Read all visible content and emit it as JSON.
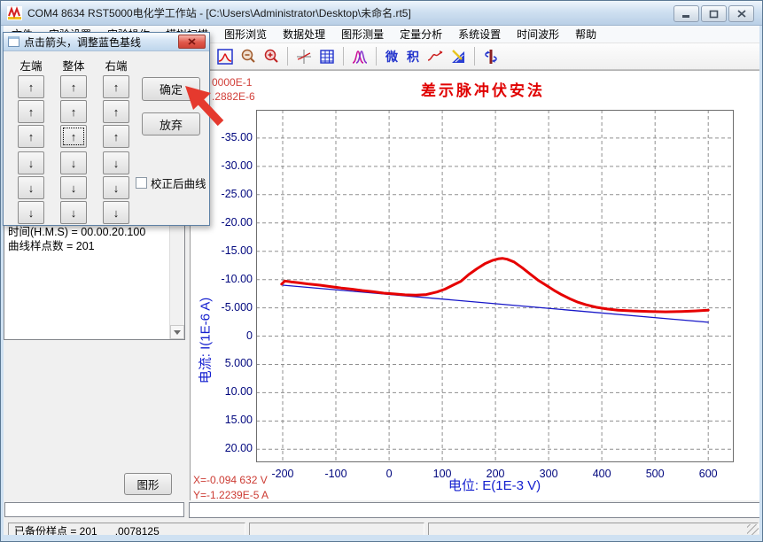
{
  "window": {
    "title": "COM4 8634 RST5000电化学工作站 - [C:\\Users\\Administrator\\Desktop\\未命名.rt5]"
  },
  "menu": {
    "items": [
      "文件",
      "实验设置",
      "实验操作",
      "模拟扫描",
      "图形浏览",
      "数据处理",
      "图形测量",
      "定量分析",
      "系统设置",
      "时间波形",
      "帮助"
    ]
  },
  "toolbar": {
    "derivative_label": "微",
    "integral_label": "积",
    "icon_names": [
      "stop",
      "axis-plus-minus",
      "axis-minus-minus",
      "axis-minus-plus",
      "axis-plus-plus",
      "peak-expand-y",
      "peak-compress-y",
      "peak-window-large",
      "peak-window-small",
      "zoom-out",
      "zoom-in",
      "baseline-cross",
      "data-table",
      "overlay-peaks",
      "derivative",
      "integral",
      "smooth-curve",
      "measure-tool",
      "flip-axis"
    ],
    "pressed_icon": "axis-minus-plus"
  },
  "dialog": {
    "title": "点击箭头，调整蓝色基线",
    "column_headers": [
      "左端",
      "整体",
      "右端"
    ],
    "up_arrow": "↑",
    "down_arrow": "↓",
    "confirm_label": "确定",
    "discard_label": "放弃",
    "checkbox_label": "校正后曲线",
    "checkbox_checked": false,
    "focused_button": {
      "grid": "up",
      "row": 2,
      "col": 1
    }
  },
  "left_panel": {
    "lines": [
      "时间(H.M.S) = 00.00.20.100",
      "曲线样点数 = 201"
    ],
    "graph_button_label": "图形",
    "input_value": ""
  },
  "chart": {
    "title": "差示脉冲伏安法",
    "partial_readout_line1": "0000E-1",
    "partial_readout_line2": ".2882E-6",
    "y_axis_label": "电流: I(1E-6 A)",
    "x_axis_label": "电位:  E(1E-3 V)",
    "cursor_x": "X=-0.094 632 V",
    "cursor_y": "Y=-1.2239E-5 A"
  },
  "chart_data": {
    "type": "line",
    "xlim": [
      -250,
      648
    ],
    "ylim": [
      -40,
      22.3
    ],
    "y_inverted_axis": true,
    "x_ticks": [
      -200,
      -100,
      0,
      100,
      200,
      300,
      400,
      500,
      600
    ],
    "y_ticks": [
      {
        "v": -35,
        "label": "-35.00"
      },
      {
        "v": -30,
        "label": "-30.00"
      },
      {
        "v": -25,
        "label": "-25.00"
      },
      {
        "v": -20,
        "label": "-20.00"
      },
      {
        "v": -15,
        "label": "-15.00"
      },
      {
        "v": -10,
        "label": "-10.00"
      },
      {
        "v": -5,
        "label": "-5.000"
      },
      {
        "v": 0,
        "label": "0"
      },
      {
        "v": 5,
        "label": "5.000"
      },
      {
        "v": 10,
        "label": "10.00"
      },
      {
        "v": 15,
        "label": "15.00"
      },
      {
        "v": 20,
        "label": "20.00"
      }
    ],
    "grid_dashed": true,
    "series": [
      {
        "name": "baseline",
        "color": "#1616c8",
        "width": 1.3,
        "points": [
          [
            -200,
            -9.0
          ],
          [
            600,
            -2.45
          ]
        ]
      },
      {
        "name": "dpv-curve",
        "color": "#e60000",
        "width": 3,
        "points": [
          [
            -202,
            -9.2
          ],
          [
            -196,
            -9.75
          ],
          [
            -185,
            -9.6
          ],
          [
            -170,
            -9.45
          ],
          [
            -150,
            -9.2
          ],
          [
            -130,
            -9.0
          ],
          [
            -110,
            -8.75
          ],
          [
            -90,
            -8.5
          ],
          [
            -70,
            -8.3
          ],
          [
            -50,
            -8.05
          ],
          [
            -30,
            -7.85
          ],
          [
            -10,
            -7.6
          ],
          [
            10,
            -7.45
          ],
          [
            30,
            -7.3
          ],
          [
            50,
            -7.25
          ],
          [
            70,
            -7.35
          ],
          [
            90,
            -7.8
          ],
          [
            105,
            -8.3
          ],
          [
            120,
            -9.0
          ],
          [
            135,
            -9.7
          ],
          [
            150,
            -10.9
          ],
          [
            165,
            -11.9
          ],
          [
            180,
            -12.8
          ],
          [
            195,
            -13.4
          ],
          [
            205,
            -13.65
          ],
          [
            213,
            -13.75
          ],
          [
            222,
            -13.6
          ],
          [
            235,
            -13.1
          ],
          [
            250,
            -12.1
          ],
          [
            265,
            -11.0
          ],
          [
            280,
            -9.9
          ],
          [
            295,
            -9.0
          ],
          [
            310,
            -8.1
          ],
          [
            325,
            -7.3
          ],
          [
            340,
            -6.6
          ],
          [
            355,
            -6.0
          ],
          [
            370,
            -5.55
          ],
          [
            390,
            -5.1
          ],
          [
            410,
            -4.8
          ],
          [
            430,
            -4.6
          ],
          [
            460,
            -4.45
          ],
          [
            490,
            -4.35
          ],
          [
            520,
            -4.3
          ],
          [
            550,
            -4.35
          ],
          [
            575,
            -4.45
          ],
          [
            600,
            -4.6
          ]
        ]
      }
    ]
  },
  "status_bar": {
    "panel1": "已备份样点 = 201      .0078125",
    "panel2": "",
    "panel3": ""
  }
}
